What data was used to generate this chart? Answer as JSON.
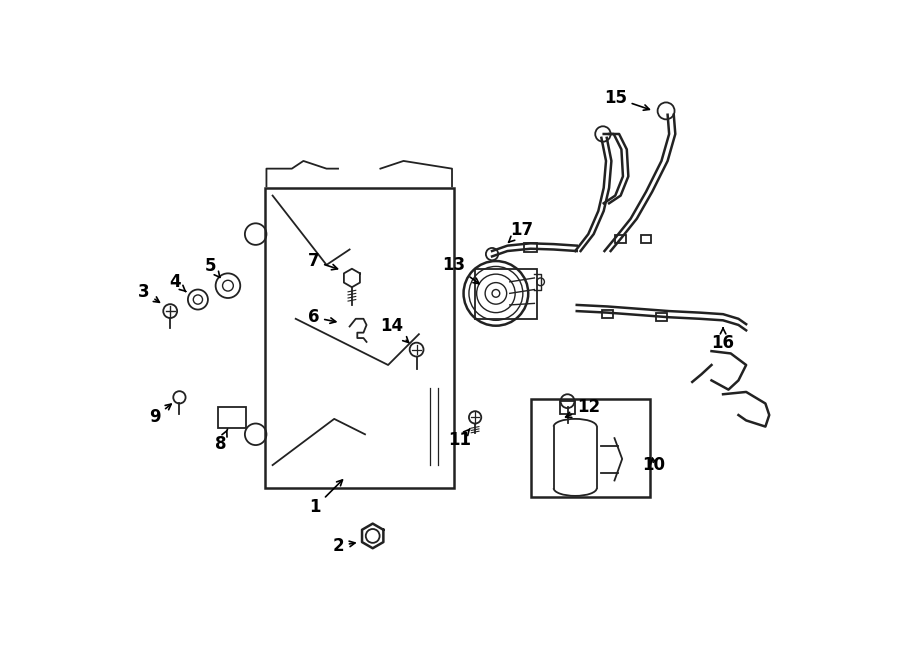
{
  "bg_color": "#ffffff",
  "line_color": "#222222",
  "label_color": "#000000",
  "label_fontsize": 12,
  "arrow_color": "#000000",
  "fig_width": 9.0,
  "fig_height": 6.61,
  "dpi": 100
}
